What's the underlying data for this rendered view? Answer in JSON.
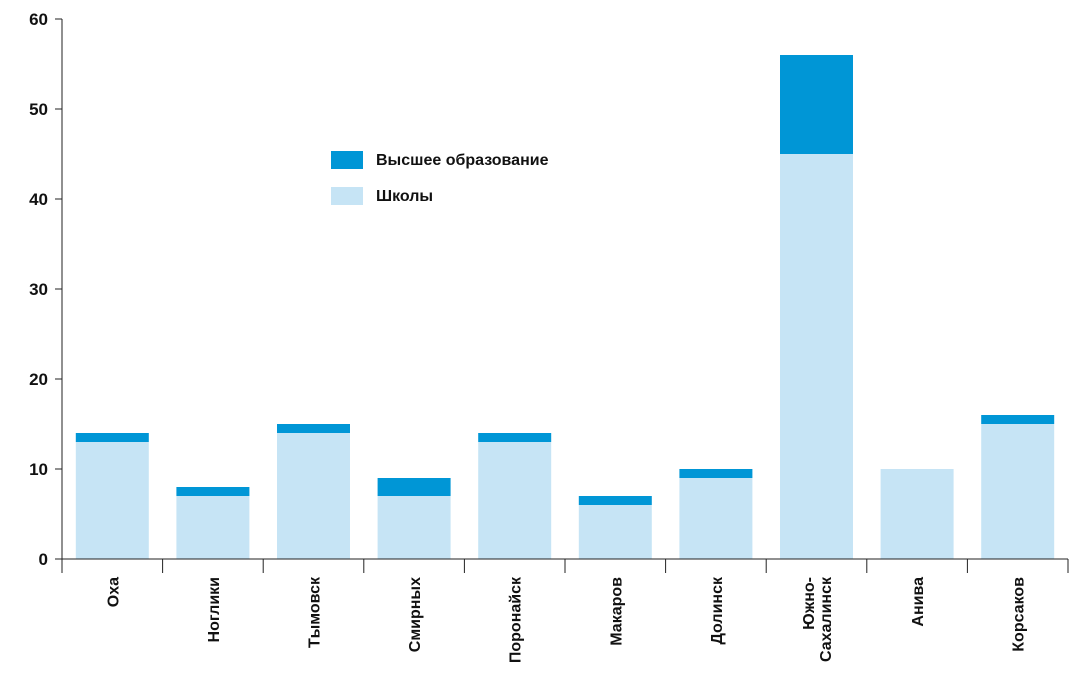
{
  "chart_data": {
    "type": "bar",
    "stacked": true,
    "categories": [
      "Оха",
      "Ноглики",
      "Тымовск",
      "Смирных",
      "Поронайск",
      "Макаров",
      "Долинск",
      "Южно-Сахалинск",
      "Анива",
      "Корсаков"
    ],
    "category_label_lines": [
      [
        "Оха"
      ],
      [
        "Ноглики"
      ],
      [
        "Тымовск"
      ],
      [
        "Смирных"
      ],
      [
        "Поронайск"
      ],
      [
        "Макаров"
      ],
      [
        "Долинск"
      ],
      [
        "Южно-",
        "Сахалинск"
      ],
      [
        "Анива"
      ],
      [
        "Корсаков"
      ]
    ],
    "series": [
      {
        "name": "Школы",
        "color": "#c6e4f5",
        "values": [
          13,
          7,
          14,
          7,
          13,
          6,
          9,
          45,
          10,
          15
        ]
      },
      {
        "name": "Высшее образование",
        "color": "#0096d6",
        "values": [
          1,
          1,
          1,
          2,
          1,
          1,
          1,
          11,
          0,
          1
        ]
      }
    ],
    "legend_order": [
      "Высшее образование",
      "Школы"
    ],
    "legend_position": "upper-center",
    "ylim": [
      0,
      60
    ],
    "yticks": [
      0,
      10,
      20,
      30,
      40,
      50,
      60
    ],
    "grid": false,
    "title": "",
    "xlabel": "",
    "ylabel": ""
  }
}
